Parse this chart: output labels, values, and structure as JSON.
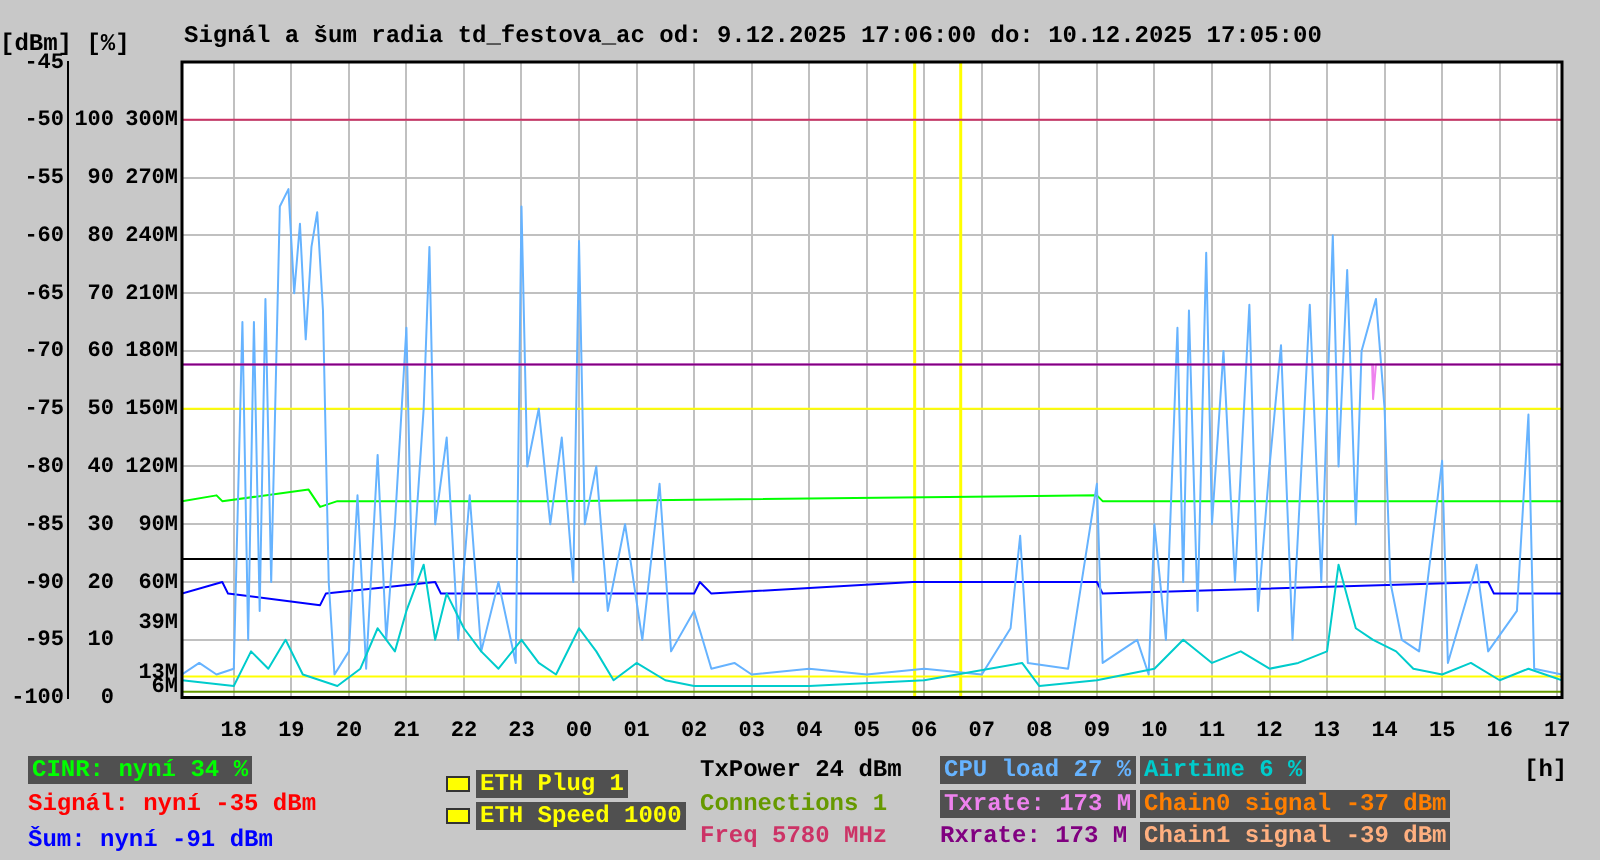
{
  "chart_data": {
    "type": "line",
    "title": "Signál a šum radia td_festova_ac od: 9.12.2025 17:06:00 do: 10.12.2025 17:05:00",
    "xlabel": "[h]",
    "ylabel": "[dBm] [%]",
    "xlim": [
      "2025-12-09T17:06",
      "2025-12-10T17:05"
    ],
    "xticks": [
      {
        "value": "2025-12-09T18:00",
        "label": "18"
      },
      {
        "value": "2025-12-09T19:00",
        "label": "19"
      },
      {
        "value": "2025-12-09T20:00",
        "label": "20"
      },
      {
        "value": "2025-12-09T21:00",
        "label": "21"
      },
      {
        "value": "2025-12-09T22:00",
        "label": "22"
      },
      {
        "value": "2025-12-09T23:00",
        "label": "23"
      },
      {
        "value": "2025-12-10T00:00",
        "label": "00"
      },
      {
        "value": "2025-12-10T01:00",
        "label": "01"
      },
      {
        "value": "2025-12-10T02:00",
        "label": "02"
      },
      {
        "value": "2025-12-10T03:00",
        "label": "03"
      },
      {
        "value": "2025-12-10T04:00",
        "label": "04"
      },
      {
        "value": "2025-12-10T05:00",
        "label": "05"
      },
      {
        "value": "2025-12-10T06:00",
        "label": "06"
      },
      {
        "value": "2025-12-10T07:00",
        "label": "07"
      },
      {
        "value": "2025-12-10T08:00",
        "label": "08"
      },
      {
        "value": "2025-12-10T09:00",
        "label": "09"
      },
      {
        "value": "2025-12-10T10:00",
        "label": "10"
      },
      {
        "value": "2025-12-10T11:00",
        "label": "11"
      },
      {
        "value": "2025-12-10T12:00",
        "label": "12"
      },
      {
        "value": "2025-12-10T13:00",
        "label": "13"
      },
      {
        "value": "2025-12-10T14:00",
        "label": "14"
      },
      {
        "value": "2025-12-10T15:00",
        "label": "15"
      },
      {
        "value": "2025-12-10T16:00",
        "label": "16"
      },
      {
        "value": "2025-12-10T17:00",
        "label": "17"
      }
    ],
    "ylim": [
      -100,
      -45
    ],
    "yticks": [
      -100,
      -95,
      -90,
      -85,
      -80,
      -75,
      -70,
      -65,
      -60,
      -55,
      -50,
      -45
    ],
    "y2lim": [
      0,
      110
    ],
    "y2ticks": [
      0,
      10,
      20,
      30,
      40,
      50,
      60,
      70,
      80,
      90,
      100
    ],
    "y3lim": [
      0,
      330
    ],
    "y3ticks": [
      {
        "value": 6,
        "label": "6M"
      },
      {
        "value": 13,
        "label": "13M"
      },
      {
        "value": 39,
        "label": "39M"
      },
      {
        "value": 60,
        "label": "60M"
      },
      {
        "value": 90,
        "label": "90M"
      },
      {
        "value": 120,
        "label": "120M"
      },
      {
        "value": 150,
        "label": "150M"
      },
      {
        "value": 180,
        "label": "180M"
      },
      {
        "value": 210,
        "label": "210M"
      },
      {
        "value": 240,
        "label": "240M"
      },
      {
        "value": 270,
        "label": "270M"
      },
      {
        "value": 300,
        "label": "300M"
      }
    ],
    "grid": true,
    "legend": "bottom",
    "marker": "none",
    "line_style": "solid",
    "ref_lines": [
      {
        "axis": "x",
        "value": "2025-12-10T05:50",
        "color": "#ffff00"
      },
      {
        "axis": "x",
        "value": "2025-12-10T06:38",
        "color": "#ffff00"
      }
    ],
    "series": [
      {
        "name": "CINR: nyní 34 %",
        "color": "#00ff00",
        "axis": "y2",
        "x": [
          "2025-12-09T17:06",
          "2025-12-09T17:42",
          "2025-12-09T17:48",
          "2025-12-09T19:18",
          "2025-12-09T19:30",
          "2025-12-09T19:48",
          "2025-12-09T23:36",
          "2025-12-10T09:00",
          "2025-12-10T09:06",
          "2025-12-10T17:05"
        ],
        "values": [
          34,
          35,
          34,
          36,
          33,
          34,
          34,
          35,
          34,
          34
        ]
      },
      {
        "name": "Signál: nyní -35 dBm",
        "color": "#ff0000"
      },
      {
        "name": "Šum: nyní -91 dBm",
        "color": "#0000ff",
        "x": [
          "2025-12-09T17:06",
          "2025-12-09T17:48",
          "2025-12-09T17:54",
          "2025-12-09T19:30",
          "2025-12-09T19:36",
          "2025-12-09T21:30",
          "2025-12-09T21:36",
          "2025-12-10T02:00",
          "2025-12-10T02:06",
          "2025-12-10T02:18",
          "2025-12-10T05:48",
          "2025-12-10T09:00",
          "2025-12-10T09:06",
          "2025-12-10T15:48",
          "2025-12-10T15:54",
          "2025-12-10T17:05"
        ],
        "values": [
          -91,
          -90,
          -91,
          -92,
          -91,
          -90,
          -91,
          -91,
          -90,
          -91,
          -90,
          -90,
          -91,
          -90,
          -91,
          -91
        ]
      },
      {
        "name": "ETH Plug 1",
        "color": "#ffff00",
        "axis": "y3",
        "x": [
          "2025-12-09T17:06",
          "2025-12-10T17:05"
        ],
        "values": [
          11,
          11
        ]
      },
      {
        "name": "ETH Speed 1000",
        "color": "#ffff00",
        "axis": "y3",
        "x": [
          "2025-12-09T17:06",
          "2025-12-10T17:05"
        ],
        "values": [
          150,
          150
        ]
      },
      {
        "name": "TxPower 24 dBm",
        "color": "#000000",
        "axis": "y2",
        "x": [
          "2025-12-09T17:06",
          "2025-12-10T17:05"
        ],
        "values": [
          24,
          24
        ]
      },
      {
        "name": "Connections 1",
        "color": "#669900",
        "axis": "y2",
        "x": [
          "2025-12-09T17:06",
          "2025-12-10T17:05"
        ],
        "values": [
          1,
          1
        ]
      },
      {
        "name": "Freq 5780 MHz",
        "color": "#cc3366",
        "axis": "y2",
        "x": [
          "2025-12-09T17:06",
          "2025-12-10T17:05"
        ],
        "values": [
          100,
          100
        ]
      },
      {
        "name": "CPU load 27 %",
        "color": "#66b3ff",
        "axis": "y2",
        "x": [
          "2025-12-09T17:06",
          "2025-12-09T17:24",
          "2025-12-09T17:42",
          "2025-12-09T18:00",
          "2025-12-09T18:09",
          "2025-12-09T18:15",
          "2025-12-09T18:21",
          "2025-12-09T18:27",
          "2025-12-09T18:33",
          "2025-12-09T18:39",
          "2025-12-09T18:48",
          "2025-12-09T18:57",
          "2025-12-09T19:03",
          "2025-12-09T19:09",
          "2025-12-09T19:15",
          "2025-12-09T19:21",
          "2025-12-09T19:27",
          "2025-12-09T19:33",
          "2025-12-09T19:39",
          "2025-12-09T19:45",
          "2025-12-09T20:00",
          "2025-12-09T20:09",
          "2025-12-09T20:18",
          "2025-12-09T20:30",
          "2025-12-09T20:39",
          "2025-12-09T20:48",
          "2025-12-09T21:00",
          "2025-12-09T21:06",
          "2025-12-09T21:18",
          "2025-12-09T21:24",
          "2025-12-09T21:30",
          "2025-12-09T21:42",
          "2025-12-09T21:54",
          "2025-12-09T22:06",
          "2025-12-09T22:18",
          "2025-12-09T22:36",
          "2025-12-09T22:54",
          "2025-12-09T23:00",
          "2025-12-09T23:06",
          "2025-12-09T23:18",
          "2025-12-09T23:30",
          "2025-12-09T23:42",
          "2025-12-09T23:54",
          "2025-12-10T00:00",
          "2025-12-10T00:06",
          "2025-12-10T00:18",
          "2025-12-10T00:30",
          "2025-12-10T00:48",
          "2025-12-10T01:06",
          "2025-12-10T01:24",
          "2025-12-10T01:36",
          "2025-12-10T02:00",
          "2025-12-10T02:18",
          "2025-12-10T02:42",
          "2025-12-10T03:00",
          "2025-12-10T04:00",
          "2025-12-10T05:00",
          "2025-12-10T06:00",
          "2025-12-10T07:00",
          "2025-12-10T07:30",
          "2025-12-10T07:40",
          "2025-12-10T07:48",
          "2025-12-10T08:30",
          "2025-12-10T09:00",
          "2025-12-10T09:06",
          "2025-12-10T09:42",
          "2025-12-10T09:54",
          "2025-12-10T10:00",
          "2025-12-10T10:12",
          "2025-12-10T10:24",
          "2025-12-10T10:30",
          "2025-12-10T10:36",
          "2025-12-10T10:45",
          "2025-12-10T10:54",
          "2025-12-10T11:00",
          "2025-12-10T11:12",
          "2025-12-10T11:24",
          "2025-12-10T11:39",
          "2025-12-10T11:48",
          "2025-12-10T12:00",
          "2025-12-10T12:12",
          "2025-12-10T12:24",
          "2025-12-10T12:42",
          "2025-12-10T12:54",
          "2025-12-10T13:06",
          "2025-12-10T13:12",
          "2025-12-10T13:21",
          "2025-12-10T13:30",
          "2025-12-10T13:36",
          "2025-12-10T13:51",
          "2025-12-10T14:00",
          "2025-12-10T14:06",
          "2025-12-10T14:18",
          "2025-12-10T14:36",
          "2025-12-10T15:00",
          "2025-12-10T15:06",
          "2025-12-10T15:36",
          "2025-12-10T15:48",
          "2025-12-10T16:18",
          "2025-12-10T16:30",
          "2025-12-10T16:36",
          "2025-12-10T17:05"
        ],
        "values": [
          4,
          6,
          4,
          5,
          65,
          10,
          65,
          15,
          69,
          20,
          85,
          88,
          70,
          82,
          62,
          78,
          84,
          67,
          20,
          4,
          8,
          35,
          5,
          42,
          10,
          30,
          64,
          20,
          50,
          78,
          30,
          45,
          10,
          35,
          8,
          20,
          6,
          85,
          40,
          50,
          30,
          45,
          20,
          79,
          30,
          40,
          15,
          30,
          10,
          37,
          8,
          15,
          5,
          6,
          4,
          5,
          4,
          5,
          4,
          12,
          28,
          6,
          5,
          37,
          6,
          10,
          4,
          30,
          10,
          64,
          20,
          67,
          15,
          77,
          30,
          60,
          20,
          68,
          15,
          40,
          61,
          10,
          68,
          20,
          80,
          40,
          74,
          30,
          60,
          69,
          50,
          20,
          10,
          8,
          41,
          6,
          23,
          8,
          15,
          49,
          5,
          4
        ]
      },
      {
        "name": "Txrate: 173 M",
        "color": "#ee82ee",
        "axis": "y3",
        "x": [
          "2025-12-09T17:06",
          "2025-12-10T13:47",
          "2025-12-10T13:48",
          "2025-12-10T13:51",
          "2025-12-10T17:05"
        ],
        "values": [
          173,
          173,
          155,
          173,
          173
        ]
      },
      {
        "name": "Rxrate: 173 M",
        "color": "#800080",
        "axis": "y3",
        "x": [
          "2025-12-09T17:06",
          "2025-12-10T17:05"
        ],
        "values": [
          173,
          173
        ]
      },
      {
        "name": "Airtime 6 %",
        "color": "#00cccc",
        "axis": "y2",
        "x": [
          "2025-12-09T17:06",
          "2025-12-09T18:00",
          "2025-12-09T18:18",
          "2025-12-09T18:36",
          "2025-12-09T18:54",
          "2025-12-09T19:12",
          "2025-12-09T19:48",
          "2025-12-09T20:12",
          "2025-12-09T20:30",
          "2025-12-09T20:48",
          "2025-12-09T21:00",
          "2025-12-09T21:18",
          "2025-12-09T21:30",
          "2025-12-09T21:42",
          "2025-12-09T22:00",
          "2025-12-09T22:18",
          "2025-12-09T22:36",
          "2025-12-09T23:00",
          "2025-12-09T23:18",
          "2025-12-09T23:36",
          "2025-12-10T00:00",
          "2025-12-10T00:18",
          "2025-12-10T00:36",
          "2025-12-10T01:00",
          "2025-12-10T01:30",
          "2025-12-10T02:00",
          "2025-12-10T04:00",
          "2025-12-10T06:00",
          "2025-12-10T07:42",
          "2025-12-10T08:00",
          "2025-12-10T09:00",
          "2025-12-10T10:00",
          "2025-12-10T10:30",
          "2025-12-10T11:00",
          "2025-12-10T11:30",
          "2025-12-10T12:00",
          "2025-12-10T12:30",
          "2025-12-10T13:00",
          "2025-12-10T13:12",
          "2025-12-10T13:30",
          "2025-12-10T13:48",
          "2025-12-10T14:12",
          "2025-12-10T14:30",
          "2025-12-10T15:00",
          "2025-12-10T15:30",
          "2025-12-10T16:00",
          "2025-12-10T16:30",
          "2025-12-10T17:05"
        ],
        "values": [
          3,
          2,
          8,
          5,
          10,
          4,
          2,
          5,
          12,
          8,
          15,
          23,
          10,
          18,
          12,
          8,
          5,
          10,
          6,
          4,
          12,
          8,
          3,
          6,
          3,
          2,
          2,
          3,
          6,
          2,
          3,
          5,
          10,
          6,
          8,
          5,
          6,
          8,
          23,
          12,
          10,
          8,
          5,
          4,
          6,
          3,
          5,
          3
        ]
      },
      {
        "name": "Chain0 signal -37 dBm",
        "color": "#ff7f00"
      },
      {
        "name": "Chain1 signal -39 dBm",
        "color": "#ffb080"
      }
    ]
  }
}
